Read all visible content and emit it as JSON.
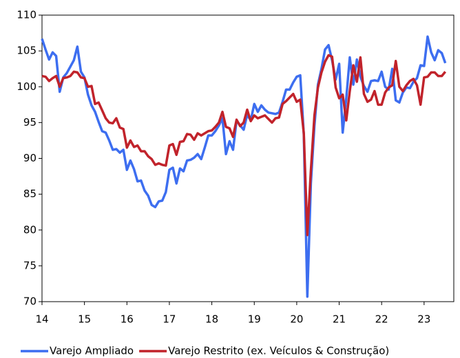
{
  "chart_data": {
    "type": "line",
    "x": [
      14,
      14.083,
      14.167,
      14.25,
      14.333,
      14.417,
      14.5,
      14.583,
      14.667,
      14.75,
      14.833,
      14.917,
      15,
      15.083,
      15.167,
      15.25,
      15.333,
      15.417,
      15.5,
      15.583,
      15.667,
      15.75,
      15.833,
      15.917,
      16,
      16.083,
      16.167,
      16.25,
      16.333,
      16.417,
      16.5,
      16.583,
      16.667,
      16.75,
      16.833,
      16.917,
      17,
      17.083,
      17.167,
      17.25,
      17.333,
      17.417,
      17.5,
      17.583,
      17.667,
      17.75,
      17.833,
      17.917,
      18,
      18.083,
      18.167,
      18.25,
      18.333,
      18.417,
      18.5,
      18.583,
      18.667,
      18.75,
      18.833,
      18.917,
      19,
      19.083,
      19.167,
      19.25,
      19.333,
      19.417,
      19.5,
      19.583,
      19.667,
      19.75,
      19.833,
      19.917,
      20,
      20.083,
      20.167,
      20.25,
      20.333,
      20.417,
      20.5,
      20.583,
      20.667,
      20.75,
      20.833,
      20.917,
      21,
      21.083,
      21.167,
      21.25,
      21.333,
      21.417,
      21.5,
      21.583,
      21.667,
      21.75,
      21.833,
      21.917,
      22,
      22.083,
      22.167,
      22.25,
      22.333,
      22.417,
      22.5,
      22.583,
      22.667,
      22.75,
      22.833,
      22.917,
      23,
      23.083,
      23.167,
      23.25,
      23.333,
      23.417,
      23.5
    ],
    "series": [
      {
        "name": "Varejo Ampliado",
        "color": "#3d6ef0",
        "values": [
          106.7,
          105.2,
          103.8,
          104.8,
          104.3,
          99.3,
          101.3,
          101.9,
          102.8,
          103.7,
          105.6,
          102.1,
          101.3,
          98.9,
          97.4,
          96.5,
          95.1,
          93.8,
          93.6,
          92.5,
          91.2,
          91.3,
          90.8,
          91.2,
          88.4,
          89.7,
          88.5,
          86.8,
          86.9,
          85.5,
          84.8,
          83.5,
          83.2,
          84.0,
          84.1,
          85.3,
          88.4,
          88.7,
          86.5,
          88.6,
          88.2,
          89.7,
          89.8,
          90.1,
          90.6,
          89.9,
          91.5,
          93.2,
          93.2,
          93.8,
          94.6,
          95.6,
          90.6,
          92.4,
          91.2,
          95.3,
          94.6,
          94.0,
          96.1,
          95.3,
          97.6,
          96.5,
          97.4,
          96.8,
          96.4,
          96.3,
          96.2,
          96.4,
          97.9,
          99.6,
          99.6,
          100.6,
          101.4,
          101.6,
          93.3,
          70.7,
          86.5,
          94.6,
          100.3,
          102.5,
          105.2,
          105.8,
          103.7,
          101.0,
          103.2,
          93.6,
          98.4,
          104.1,
          100.3,
          103.8,
          101.4,
          100.1,
          99.3,
          100.8,
          100.9,
          100.8,
          102.1,
          100.0,
          99.6,
          102.5,
          98.1,
          97.8,
          99.2,
          99.9,
          99.8,
          100.7,
          101.2,
          103.0,
          102.9,
          107.0,
          104.8,
          103.7,
          105.1,
          104.7,
          103.3
        ]
      },
      {
        "name": "Varejo Restrito (ex. Veículos & Construção)",
        "color": "#c1232b",
        "values": [
          101.5,
          101.4,
          100.8,
          101.2,
          101.5,
          100.0,
          101.2,
          101.3,
          101.5,
          102.1,
          102.0,
          101.3,
          101.2,
          100.0,
          100.1,
          97.6,
          97.8,
          96.7,
          95.6,
          95.0,
          94.9,
          95.6,
          94.3,
          94.1,
          91.5,
          92.5,
          91.6,
          91.8,
          91.0,
          91.0,
          90.3,
          89.9,
          89.1,
          89.3,
          89.1,
          89.0,
          91.8,
          92.0,
          90.5,
          92.3,
          92.4,
          93.4,
          93.3,
          92.6,
          93.5,
          93.2,
          93.5,
          93.8,
          93.9,
          94.4,
          95.0,
          96.5,
          94.4,
          94.2,
          93.0,
          95.4,
          94.5,
          95.0,
          96.8,
          95.2,
          96.0,
          95.6,
          95.8,
          96.0,
          95.5,
          95.0,
          95.6,
          95.7,
          97.6,
          98.0,
          98.5,
          99.0,
          97.9,
          98.2,
          93.5,
          79.3,
          88.3,
          96.0,
          99.9,
          102.0,
          103.5,
          104.4,
          104.2,
          99.9,
          98.4,
          98.9,
          95.3,
          99.4,
          103.0,
          100.7,
          104.1,
          99.0,
          97.9,
          98.2,
          99.4,
          97.5,
          97.5,
          99.2,
          99.9,
          100.2,
          103.6,
          100.0,
          99.4,
          100.2,
          100.8,
          101.1,
          100.2,
          97.5,
          101.3,
          101.4,
          102.0,
          102.0,
          101.5,
          101.5,
          102.1
        ]
      }
    ],
    "xlim": [
      14,
      23.7
    ],
    "xticks": [
      14,
      15,
      16,
      17,
      18,
      19,
      20,
      21,
      22,
      23
    ],
    "ylim": [
      70,
      110
    ],
    "yticks": [
      70,
      75,
      80,
      85,
      90,
      95,
      100,
      105,
      110
    ],
    "grid": false,
    "legend": "bottom"
  }
}
